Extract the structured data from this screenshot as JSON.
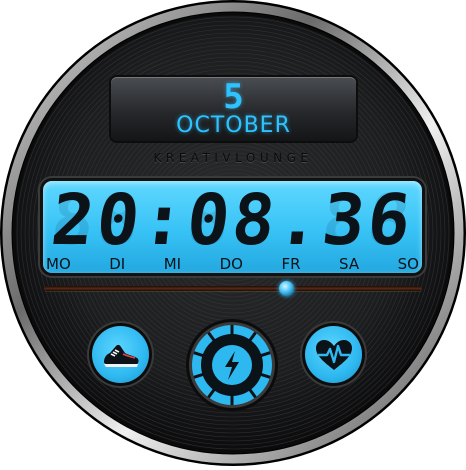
{
  "date": {
    "day": "5",
    "month": "OCTOBER"
  },
  "brand": "KREATIVLOUNGE",
  "time": {
    "display": "20:08.36",
    "ghost": "88:88.88"
  },
  "weekdays": [
    "MO",
    "DI",
    "MI",
    "DO",
    "FR",
    "SA",
    "SO"
  ],
  "progress": {
    "fraction": 0.64
  },
  "buttons": {
    "steps": {
      "icon": "running-shoe-icon"
    },
    "battery": {
      "icon": "lightning-bolt-icon"
    },
    "heart": {
      "icon": "heart-pulse-icon"
    }
  },
  "colors": {
    "accent": "#2ec3ff",
    "lcd": "#3cc5f5",
    "digits": "#0b1218",
    "bezel": "#1a1a1a"
  }
}
